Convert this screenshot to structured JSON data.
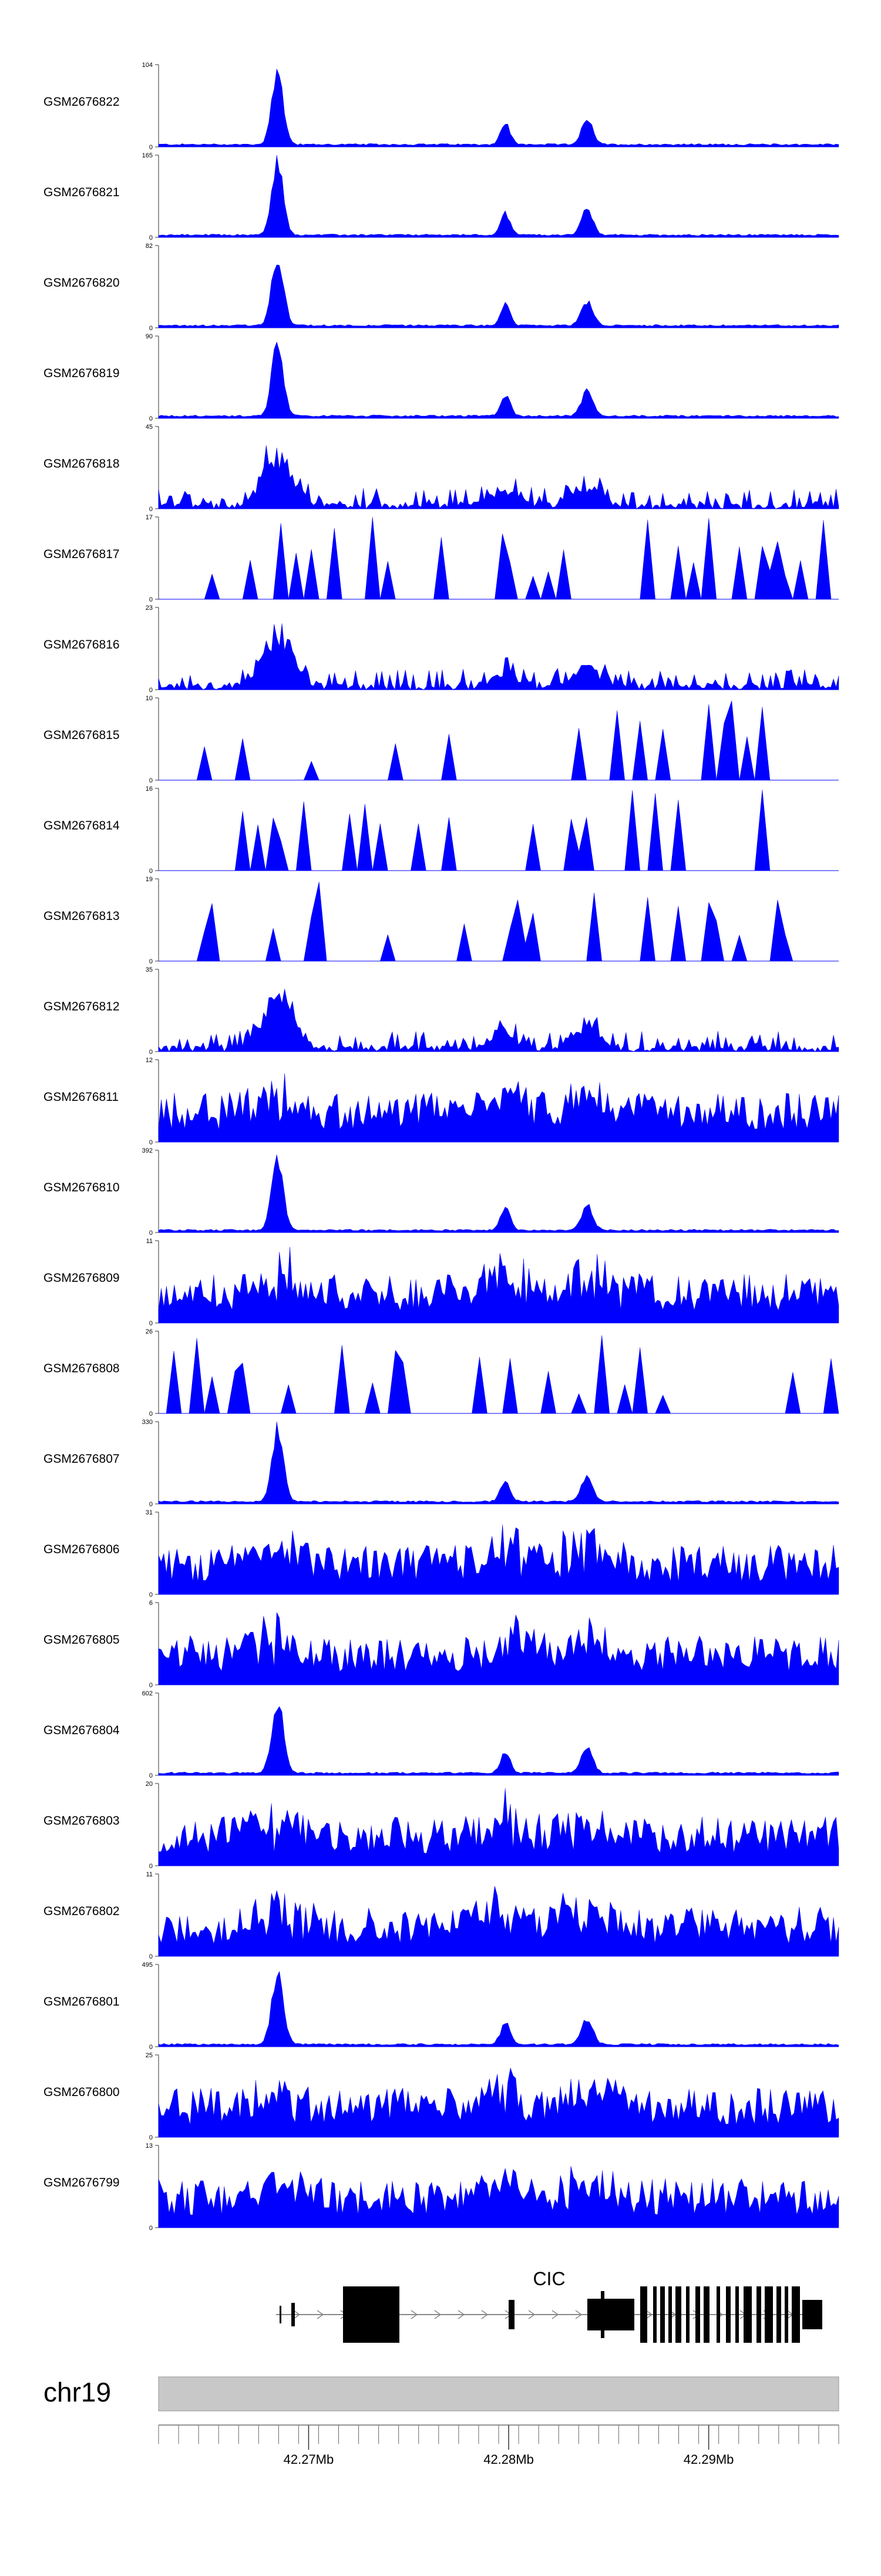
{
  "chart_data": {
    "type": "area",
    "title": "",
    "series_color": "#0000ff",
    "x_range_mb": [
      42.2625,
      42.2965
    ],
    "axis_ticks": [
      {
        "value": 42.27,
        "label": "42.27Mb"
      },
      {
        "value": 42.28,
        "label": "42.28Mb"
      },
      {
        "value": 42.29,
        "label": "42.29Mb"
      }
    ],
    "chromosome": {
      "label": "chr19",
      "color": "#c8c8c8"
    },
    "gene": {
      "name": "CIC",
      "strand": "+"
    },
    "tracks": [
      {
        "name": "GSM2676822",
        "ymax": "104",
        "kind": "sharp"
      },
      {
        "name": "GSM2676821",
        "ymax": "165",
        "kind": "sharp"
      },
      {
        "name": "GSM2676820",
        "ymax": "82",
        "kind": "sharp"
      },
      {
        "name": "GSM2676819",
        "ymax": "90",
        "kind": "sharp"
      },
      {
        "name": "GSM2676818",
        "ymax": "45",
        "kind": "medium"
      },
      {
        "name": "GSM2676817",
        "ymax": "17",
        "kind": "sparse"
      },
      {
        "name": "GSM2676816",
        "ymax": "23",
        "kind": "medium"
      },
      {
        "name": "GSM2676815",
        "ymax": "10",
        "kind": "sparse"
      },
      {
        "name": "GSM2676814",
        "ymax": "16",
        "kind": "sparse"
      },
      {
        "name": "GSM2676813",
        "ymax": "19",
        "kind": "sparse"
      },
      {
        "name": "GSM2676812",
        "ymax": "35",
        "kind": "medium"
      },
      {
        "name": "GSM2676811",
        "ymax": "12",
        "kind": "broad"
      },
      {
        "name": "GSM2676810",
        "ymax": "392",
        "kind": "sharp"
      },
      {
        "name": "GSM2676809",
        "ymax": "11",
        "kind": "broad"
      },
      {
        "name": "GSM2676808",
        "ymax": "26",
        "kind": "sparse"
      },
      {
        "name": "GSM2676807",
        "ymax": "330",
        "kind": "sharp"
      },
      {
        "name": "GSM2676806",
        "ymax": "31",
        "kind": "broad"
      },
      {
        "name": "GSM2676805",
        "ymax": "6",
        "kind": "broad"
      },
      {
        "name": "GSM2676804",
        "ymax": "602",
        "kind": "sharp"
      },
      {
        "name": "GSM2676803",
        "ymax": "20",
        "kind": "broad"
      },
      {
        "name": "GSM2676802",
        "ymax": "11",
        "kind": "broad"
      },
      {
        "name": "GSM2676801",
        "ymax": "495",
        "kind": "sharp"
      },
      {
        "name": "GSM2676800",
        "ymax": "25",
        "kind": "broad"
      },
      {
        "name": "GSM2676799",
        "ymax": "13",
        "kind": "broad"
      }
    ],
    "zero_label": "0"
  }
}
